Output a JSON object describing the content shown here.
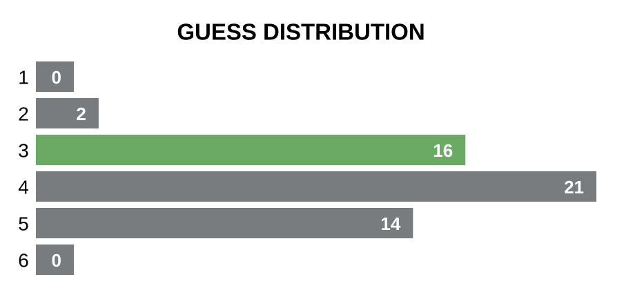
{
  "chart_data": {
    "type": "bar",
    "orientation": "horizontal",
    "title": "GUESS DISTRIBUTION",
    "categories": [
      "1",
      "2",
      "3",
      "4",
      "5",
      "6"
    ],
    "values": [
      0,
      2,
      16,
      21,
      14,
      0
    ],
    "colors": [
      "#787c7e",
      "#787c7e",
      "#6aaa64",
      "#787c7e",
      "#787c7e",
      "#787c7e"
    ]
  }
}
